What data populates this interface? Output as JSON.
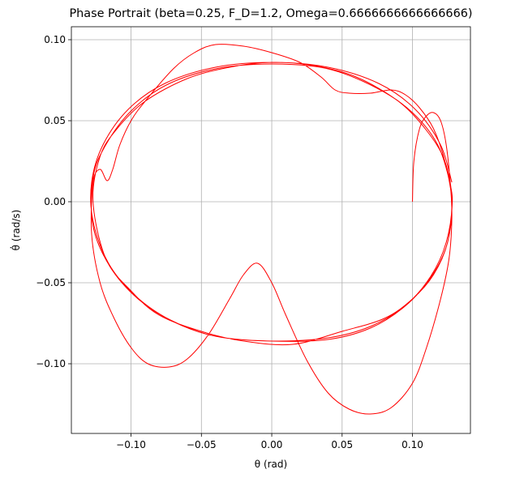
{
  "chart_data": {
    "type": "line",
    "title": "Phase Portrait (beta=0.25, F_D=1.2, Omega=0.6666666666666666)",
    "x_label": "θ (rad)",
    "y_label": "θ̇ (rad/s)",
    "xlim": [
      -0.1424,
      0.1412
    ],
    "ylim": [
      -0.143,
      0.108
    ],
    "xticks": [
      {
        "value": -0.1,
        "label": "−0.10"
      },
      {
        "value": -0.05,
        "label": "−0.05"
      },
      {
        "value": 0,
        "label": "0.00"
      },
      {
        "value": 0.05,
        "label": "0.05"
      },
      {
        "value": 0.1,
        "label": "0.10"
      }
    ],
    "yticks": [
      {
        "value": -0.1,
        "label": "−0.10"
      },
      {
        "value": -0.05,
        "label": "−0.05"
      },
      {
        "value": 0,
        "label": "0.00"
      },
      {
        "value": 0.05,
        "label": "0.05"
      },
      {
        "value": 0.1,
        "label": "0.10"
      }
    ],
    "grid": true,
    "series": [
      {
        "color": "#ff0000",
        "x": [
          0.1,
          0.101,
          0.105,
          0.11,
          0.115,
          0.12,
          0.124,
          0.127,
          0.128,
          0.126,
          0.12,
          0.11,
          0.1,
          0.085,
          0.07,
          0.055,
          0.04,
          0.025,
          0.01,
          0.0,
          -0.01,
          -0.02,
          -0.03,
          -0.045,
          -0.06,
          -0.073,
          -0.088,
          -0.1,
          -0.112,
          -0.122,
          -0.128,
          -0.127,
          -0.122,
          -0.117,
          -0.113,
          -0.108,
          -0.1,
          -0.09,
          -0.07,
          -0.055,
          -0.04,
          -0.02,
          0.0,
          0.02,
          0.035,
          0.045,
          0.055,
          0.07,
          0.085,
          0.095,
          0.105,
          0.115,
          0.123,
          0.128,
          0.125,
          0.115,
          0.1,
          0.08,
          0.05,
          0.015,
          -0.02,
          -0.05,
          -0.08,
          -0.1,
          -0.118,
          -0.127,
          -0.122,
          -0.11,
          -0.09,
          -0.06,
          -0.03,
          0.0,
          0.03,
          0.06,
          0.09,
          0.11,
          0.123,
          0.128,
          0.124,
          0.113,
          0.095,
          0.07,
          0.04,
          0.0,
          -0.04,
          -0.07,
          -0.095,
          -0.115,
          -0.127,
          -0.127,
          -0.118,
          -0.1,
          -0.075,
          -0.04,
          0.0,
          0.04,
          0.075,
          0.1,
          0.118,
          0.127,
          0.128,
          0.124,
          0.112,
          0.094,
          0.07,
          0.04,
          0.0,
          -0.04,
          -0.072,
          -0.097,
          -0.116,
          -0.127,
          -0.128,
          -0.12,
          -0.102,
          -0.076,
          -0.04,
          0.0,
          0.04,
          0.076,
          0.102,
          0.12,
          0.128
        ],
        "values": [
          0.0,
          0.025,
          0.045,
          0.053,
          0.055,
          0.05,
          0.035,
          0.01,
          -0.01,
          -0.035,
          -0.06,
          -0.09,
          -0.112,
          -0.127,
          -0.131,
          -0.128,
          -0.118,
          -0.098,
          -0.07,
          -0.05,
          -0.038,
          -0.045,
          -0.06,
          -0.082,
          -0.097,
          -0.102,
          -0.1,
          -0.09,
          -0.072,
          -0.05,
          -0.02,
          0.012,
          0.02,
          0.013,
          0.02,
          0.035,
          0.05,
          0.062,
          0.082,
          0.092,
          0.097,
          0.096,
          0.092,
          0.086,
          0.077,
          0.069,
          0.067,
          0.067,
          0.069,
          0.066,
          0.058,
          0.045,
          0.025,
          0.0,
          -0.025,
          -0.045,
          -0.06,
          -0.072,
          -0.08,
          -0.088,
          -0.086,
          -0.08,
          -0.07,
          -0.055,
          -0.035,
          0.0,
          0.028,
          0.045,
          0.062,
          0.076,
          0.083,
          0.086,
          0.084,
          0.077,
          0.062,
          0.044,
          0.025,
          0.0,
          -0.025,
          -0.046,
          -0.064,
          -0.077,
          -0.084,
          -0.086,
          -0.083,
          -0.074,
          -0.06,
          -0.04,
          -0.015,
          0.015,
          0.035,
          0.056,
          0.072,
          0.082,
          0.085,
          0.082,
          0.07,
          0.055,
          0.035,
          0.01,
          -0.005,
          -0.028,
          -0.048,
          -0.065,
          -0.078,
          -0.085,
          -0.086,
          -0.083,
          -0.073,
          -0.058,
          -0.038,
          -0.012,
          0.012,
          0.035,
          0.057,
          0.073,
          0.083,
          0.086,
          0.083,
          0.073,
          0.057,
          0.035,
          0.012
        ]
      }
    ]
  }
}
